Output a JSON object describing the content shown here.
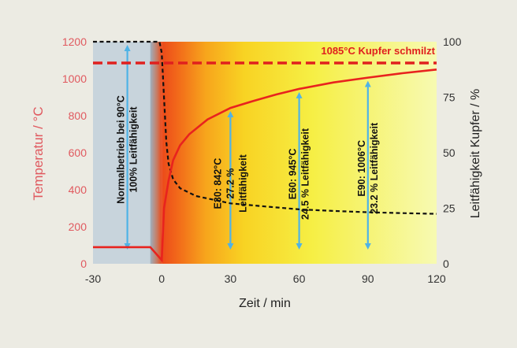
{
  "chart_data": {
    "type": "line",
    "xlabel": "Zeit / min",
    "ylabel_left": "Temperatur / °C",
    "ylabel_right": "Leitfähigkeit Kupfer / %",
    "xlim": [
      -30,
      120
    ],
    "ylim_left": [
      0,
      1200
    ],
    "ylim_right": [
      0,
      100
    ],
    "x_ticks": [
      "-30",
      "0",
      "30",
      "60",
      "90",
      "120"
    ],
    "y_ticks_left": [
      "0",
      "200",
      "400",
      "600",
      "800",
      "1000",
      "1200"
    ],
    "y_ticks_right": [
      "0",
      "25",
      "50",
      "75",
      "100"
    ],
    "melting_point": {
      "value": 1085,
      "label": "1085°C Kupfer schmilzt"
    },
    "series": [
      {
        "axis": "left",
        "color": "#e8231e",
        "points": [
          [
            -30,
            90
          ],
          [
            -5,
            90
          ],
          [
            0,
            20
          ],
          [
            1,
            300
          ],
          [
            3,
            450
          ],
          [
            5,
            560
          ],
          [
            8,
            640
          ],
          [
            12,
            700
          ],
          [
            20,
            780
          ],
          [
            30,
            842
          ],
          [
            40,
            880
          ],
          [
            50,
            915
          ],
          [
            60,
            945
          ],
          [
            75,
            980
          ],
          [
            90,
            1006
          ],
          [
            105,
            1030
          ],
          [
            120,
            1050
          ]
        ]
      },
      {
        "axis": "right",
        "color": "#111111",
        "points": [
          [
            -30,
            100
          ],
          [
            -1,
            100
          ],
          [
            0,
            95
          ],
          [
            1,
            75
          ],
          [
            2,
            55
          ],
          [
            3,
            45
          ],
          [
            5,
            38
          ],
          [
            8,
            34
          ],
          [
            15,
            30.5
          ],
          [
            30,
            27.2
          ],
          [
            45,
            25.8
          ],
          [
            60,
            24.5
          ],
          [
            75,
            23.8
          ],
          [
            90,
            23.2
          ],
          [
            105,
            22.8
          ],
          [
            120,
            22.5
          ]
        ]
      }
    ],
    "annotations": [
      {
        "x": -15,
        "lines": [
          "Normalbetrieb bei 90°C",
          "100% Leitfähigkeit"
        ]
      },
      {
        "x": 30,
        "lines": [
          "E30: 842°C",
          "27.2 %",
          "Leitfähigkeit"
        ]
      },
      {
        "x": 60,
        "lines": [
          "E60: 945°C",
          "24.5 % Leitfähigkeit"
        ]
      },
      {
        "x": 90,
        "lines": [
          "E90: 1006°C",
          "23.2 % Leitfähigkeit"
        ]
      }
    ],
    "colors": {
      "background": "#ecebe3",
      "normal_zone": "#c8d4dc",
      "temperature_line": "#e8231e",
      "conductivity_line": "#111111",
      "arrow": "#4fb3e6"
    }
  }
}
